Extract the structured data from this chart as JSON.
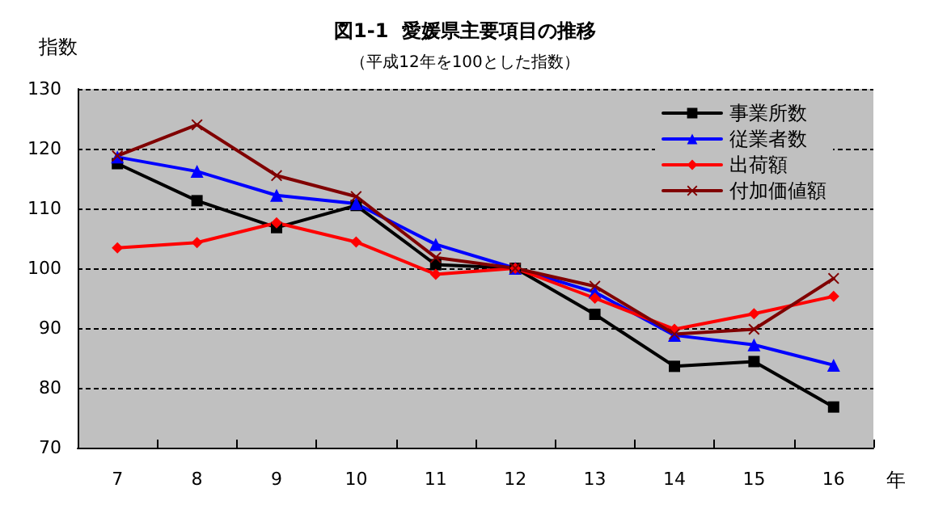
{
  "chart_data": {
    "type": "line",
    "title": "図1-1  愛媛県主要項目の推移",
    "subtitle": "（平成12年を100とした指数）",
    "xlabel": "年",
    "ylabel": "指数",
    "categories": [
      "7",
      "8",
      "9",
      "10",
      "11",
      "12",
      "13",
      "14",
      "15",
      "16"
    ],
    "series": [
      {
        "name": "事業所数",
        "color": "#000000",
        "marker": "square",
        "values": [
          117.5,
          111.3,
          106.8,
          110.5,
          100.6,
          100,
          92.3,
          83.6,
          84.4,
          76.8
        ]
      },
      {
        "name": "従業者数",
        "color": "#0000ff",
        "marker": "triangle",
        "values": [
          118.6,
          116.2,
          112.2,
          110.8,
          104,
          100,
          96,
          88.8,
          87.2,
          83.8
        ]
      },
      {
        "name": "出荷額",
        "color": "#ff0000",
        "marker": "diamond",
        "values": [
          103.4,
          104.3,
          107.6,
          104.4,
          99,
          100,
          95,
          89.8,
          92.4,
          95.3
        ]
      },
      {
        "name": "付加価値額",
        "color": "#800000",
        "marker": "cross",
        "values": [
          118.8,
          124,
          115.5,
          112,
          101.8,
          100,
          97,
          89,
          89.8,
          98.3
        ]
      }
    ],
    "ylim": [
      70,
      130
    ],
    "yticks": [
      70,
      80,
      90,
      100,
      110,
      120,
      130
    ],
    "grid": "y",
    "legend": "top right",
    "line_style": "solid"
  }
}
